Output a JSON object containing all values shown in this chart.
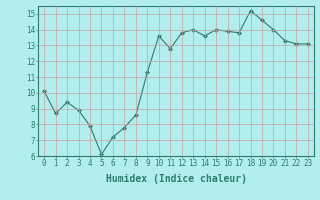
{
  "x": [
    0,
    1,
    2,
    3,
    4,
    5,
    6,
    7,
    8,
    9,
    10,
    11,
    12,
    13,
    14,
    15,
    16,
    17,
    18,
    19,
    20,
    21,
    22,
    23
  ],
  "y": [
    10.1,
    8.7,
    9.4,
    8.9,
    7.9,
    6.1,
    7.2,
    7.8,
    8.6,
    11.3,
    13.6,
    12.8,
    13.8,
    14.0,
    13.6,
    14.0,
    13.9,
    13.8,
    15.2,
    14.6,
    14.0,
    13.3,
    13.1,
    13.1
  ],
  "xlabel": "Humidex (Indice chaleur)",
  "line_color": "#2d7d6e",
  "bg_color": "#b2eeee",
  "grid_color": "#c8a0a0",
  "ylim": [
    6,
    15.5
  ],
  "xlim": [
    -0.5,
    23.5
  ],
  "yticks": [
    6,
    7,
    8,
    9,
    10,
    11,
    12,
    13,
    14,
    15
  ],
  "xticks": [
    0,
    1,
    2,
    3,
    4,
    5,
    6,
    7,
    8,
    9,
    10,
    11,
    12,
    13,
    14,
    15,
    16,
    17,
    18,
    19,
    20,
    21,
    22,
    23
  ],
  "tick_fontsize": 5.5,
  "xlabel_fontsize": 7
}
